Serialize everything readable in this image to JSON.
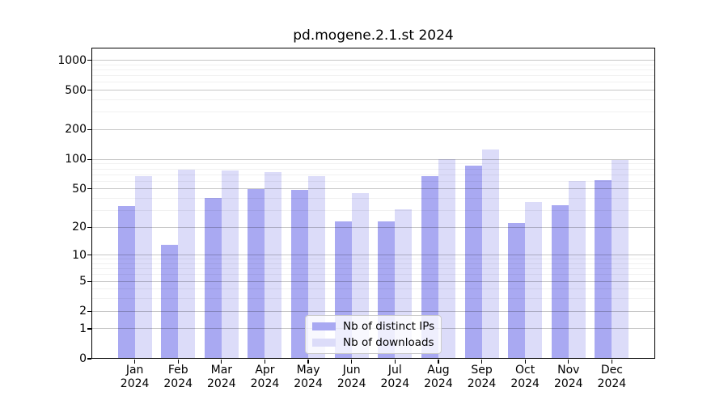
{
  "chart_data": {
    "type": "bar",
    "title": "pd.mogene.2.1.st 2024",
    "categories": [
      "Jan",
      "Feb",
      "Mar",
      "Apr",
      "May",
      "Jun",
      "Jul",
      "Aug",
      "Sep",
      "Oct",
      "Nov",
      "Dec"
    ],
    "year": "2024",
    "series": [
      {
        "name": "Nb of distinct IPs",
        "color": "#a9a9f2",
        "values": [
          33,
          13,
          40,
          50,
          49,
          23,
          23,
          67,
          87,
          22,
          34,
          61
        ]
      },
      {
        "name": "Nb of downloads",
        "color": "#dcdcf9",
        "values": [
          68,
          78,
          77,
          74,
          68,
          45,
          31,
          100,
          125,
          37,
          60,
          98
        ]
      }
    ],
    "xlabel": "",
    "ylabel": "",
    "yscale": "log1p",
    "ylim": [
      0,
      1320
    ],
    "ytick_values": [
      0,
      1,
      2,
      5,
      10,
      20,
      50,
      100,
      200,
      500,
      1000
    ],
    "minor_ytick_values": [
      3,
      4,
      6,
      7,
      8,
      9,
      30,
      40,
      60,
      70,
      80,
      90,
      300,
      400,
      600,
      700,
      800,
      900
    ],
    "grid": true,
    "legend_position": "lower center"
  },
  "colors": {
    "background": "#ffffff",
    "axis": "#000000",
    "major_grid": "#c7c7c7",
    "minor_grid": "#f0f0f0",
    "text": "#000000"
  }
}
